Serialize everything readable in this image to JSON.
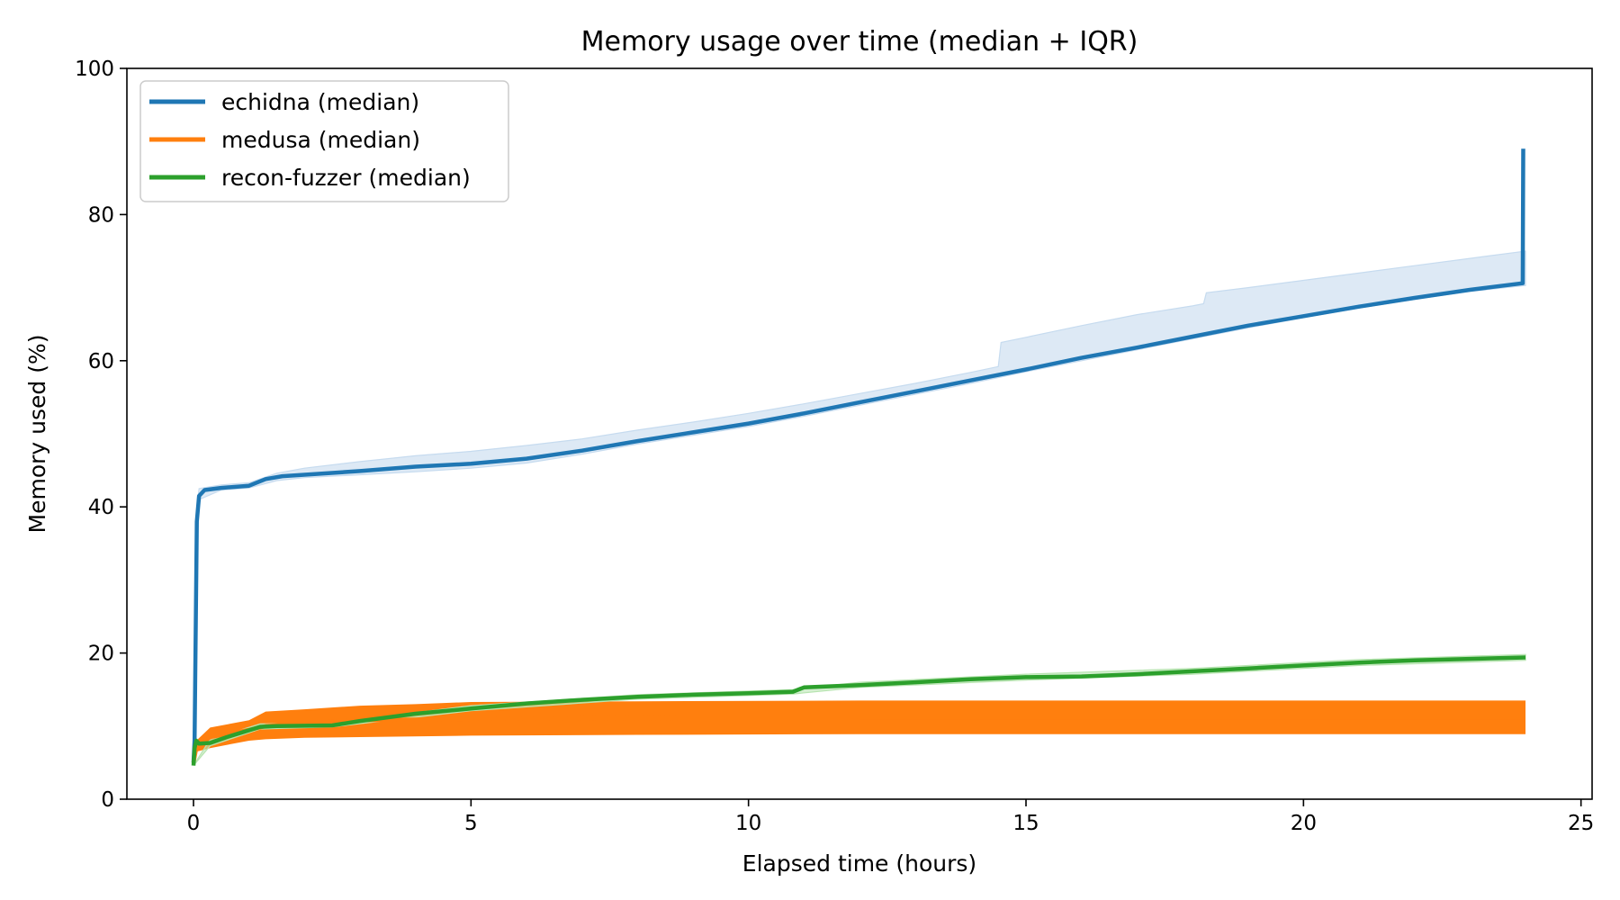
{
  "chart_data": {
    "type": "line",
    "title": "Memory usage over time (median + IQR)",
    "xlabel": "Elapsed time (hours)",
    "ylabel": "Memory used (%)",
    "xlim": [
      -1.2,
      25.2
    ],
    "ylim": [
      0,
      100
    ],
    "xticks": [
      0,
      5,
      10,
      15,
      20,
      25
    ],
    "yticks": [
      0,
      20,
      40,
      60,
      80,
      100
    ],
    "grid": false,
    "legend_position": "top-left",
    "series": [
      {
        "name": "echidna (median)",
        "color": "#1f77b4",
        "band_color": "#c6dbef",
        "median": [
          [
            0,
            5
          ],
          [
            0.02,
            8
          ],
          [
            0.06,
            38
          ],
          [
            0.1,
            41.5
          ],
          [
            0.2,
            42.3
          ],
          [
            0.5,
            42.6
          ],
          [
            1,
            42.9
          ],
          [
            1.3,
            43.8
          ],
          [
            1.6,
            44.2
          ],
          [
            2,
            44.4
          ],
          [
            3,
            44.9
          ],
          [
            4,
            45.5
          ],
          [
            5,
            45.9
          ],
          [
            6,
            46.6
          ],
          [
            7,
            47.7
          ],
          [
            8,
            49
          ],
          [
            9,
            50.2
          ],
          [
            10,
            51.4
          ],
          [
            11,
            52.8
          ],
          [
            12,
            54.3
          ],
          [
            13,
            55.8
          ],
          [
            14,
            57.3
          ],
          [
            15,
            58.8
          ],
          [
            16,
            60.4
          ],
          [
            17,
            61.8
          ],
          [
            18,
            63.3
          ],
          [
            19,
            64.8
          ],
          [
            20,
            66.1
          ],
          [
            21,
            67.4
          ],
          [
            22,
            68.6
          ],
          [
            23,
            69.7
          ],
          [
            23.95,
            70.6
          ],
          [
            23.96,
            89
          ]
        ],
        "iqr_low": [
          [
            0,
            5
          ],
          [
            0.06,
            37
          ],
          [
            0.1,
            41
          ],
          [
            0.5,
            42.3
          ],
          [
            1,
            42.6
          ],
          [
            1.5,
            43.6
          ],
          [
            2,
            44
          ],
          [
            3,
            44.4
          ],
          [
            4,
            44.8
          ],
          [
            5,
            45.3
          ],
          [
            6,
            46
          ],
          [
            7,
            47.2
          ],
          [
            8,
            48.6
          ],
          [
            9,
            49.8
          ],
          [
            10,
            51
          ],
          [
            11,
            52.4
          ],
          [
            12,
            53.9
          ],
          [
            13,
            55.4
          ],
          [
            14,
            56.9
          ],
          [
            15,
            58.5
          ],
          [
            16,
            60
          ],
          [
            17,
            61.5
          ],
          [
            18,
            63
          ],
          [
            19,
            64.5
          ],
          [
            20,
            65.9
          ],
          [
            21,
            67.2
          ],
          [
            22,
            68.4
          ],
          [
            23,
            69.5
          ],
          [
            24,
            70.3
          ]
        ],
        "iqr_high": [
          [
            0,
            5
          ],
          [
            0.06,
            40
          ],
          [
            0.1,
            42.5
          ],
          [
            0.5,
            43
          ],
          [
            1,
            43.3
          ],
          [
            1.5,
            44.6
          ],
          [
            2,
            45.3
          ],
          [
            3,
            46.2
          ],
          [
            4,
            47
          ],
          [
            5,
            47.6
          ],
          [
            6,
            48.4
          ],
          [
            7,
            49.3
          ],
          [
            8,
            50.5
          ],
          [
            9,
            51.6
          ],
          [
            10,
            52.8
          ],
          [
            11,
            54.1
          ],
          [
            12,
            55.5
          ],
          [
            13,
            56.9
          ],
          [
            14,
            58.4
          ],
          [
            14.5,
            59.2
          ],
          [
            14.55,
            62.5
          ],
          [
            15,
            63.2
          ],
          [
            16,
            64.8
          ],
          [
            17,
            66.3
          ],
          [
            18,
            67.5
          ],
          [
            18.2,
            67.8
          ],
          [
            18.25,
            69.3
          ],
          [
            19,
            70
          ],
          [
            20,
            71
          ],
          [
            21,
            72
          ],
          [
            22,
            73
          ],
          [
            23,
            74
          ],
          [
            24,
            75
          ]
        ]
      },
      {
        "name": "medusa (median)",
        "color": "#ff7f0e",
        "band_color": "#ffbb78",
        "median": [
          [
            0,
            5
          ],
          [
            0.05,
            7
          ],
          [
            0.3,
            8.5
          ],
          [
            1,
            9.5
          ],
          [
            1.3,
            10
          ],
          [
            2,
            10.4
          ],
          [
            3,
            10.8
          ],
          [
            5,
            11
          ],
          [
            8,
            11.1
          ],
          [
            12,
            11.2
          ],
          [
            16,
            11.2
          ],
          [
            20,
            11.2
          ],
          [
            24,
            11.2
          ]
        ],
        "iqr_low": [
          [
            0,
            5
          ],
          [
            0.05,
            6.5
          ],
          [
            0.3,
            7
          ],
          [
            1,
            8
          ],
          [
            1.3,
            8.2
          ],
          [
            2,
            8.4
          ],
          [
            3,
            8.5
          ],
          [
            5,
            8.7
          ],
          [
            8,
            8.8
          ],
          [
            12,
            8.9
          ],
          [
            16,
            8.9
          ],
          [
            20,
            8.9
          ],
          [
            24,
            8.9
          ]
        ],
        "iqr_high": [
          [
            0,
            5
          ],
          [
            0.05,
            8
          ],
          [
            0.3,
            9.8
          ],
          [
            1,
            10.8
          ],
          [
            1.3,
            12
          ],
          [
            2,
            12.3
          ],
          [
            3,
            12.8
          ],
          [
            4,
            13
          ],
          [
            5,
            13.3
          ],
          [
            8,
            13.4
          ],
          [
            12,
            13.5
          ],
          [
            16,
            13.5
          ],
          [
            20,
            13.5
          ],
          [
            24,
            13.5
          ]
        ]
      },
      {
        "name": "recon-fuzzer (median)",
        "color": "#2ca02c",
        "band_color": "#b7e4b0",
        "median": [
          [
            0,
            4.6
          ],
          [
            0.02,
            7
          ],
          [
            0.05,
            8
          ],
          [
            0.1,
            7.6
          ],
          [
            0.3,
            7.7
          ],
          [
            0.6,
            8.5
          ],
          [
            0.9,
            9.2
          ],
          [
            1.2,
            9.9
          ],
          [
            1.5,
            10
          ],
          [
            2.5,
            10.1
          ],
          [
            3,
            10.7
          ],
          [
            4,
            11.7
          ],
          [
            5,
            12.4
          ],
          [
            6,
            13.1
          ],
          [
            7,
            13.6
          ],
          [
            8,
            14
          ],
          [
            9,
            14.3
          ],
          [
            10,
            14.5
          ],
          [
            10.8,
            14.7
          ],
          [
            11,
            15.3
          ],
          [
            12,
            15.6
          ],
          [
            13,
            16
          ],
          [
            14,
            16.4
          ],
          [
            15,
            16.7
          ],
          [
            16,
            16.8
          ],
          [
            17,
            17.1
          ],
          [
            18,
            17.5
          ],
          [
            19,
            17.9
          ],
          [
            20,
            18.3
          ],
          [
            21,
            18.7
          ],
          [
            22,
            19
          ],
          [
            23,
            19.2
          ],
          [
            24,
            19.4
          ]
        ],
        "iqr_low": [
          [
            0,
            4.6
          ],
          [
            0.3,
            7.3
          ],
          [
            1.2,
            9.6
          ],
          [
            2.5,
            9.9
          ],
          [
            5,
            12.1
          ],
          [
            8,
            13.7
          ],
          [
            10.8,
            14.4
          ],
          [
            12,
            15.3
          ],
          [
            15,
            16.3
          ],
          [
            18,
            17.1
          ],
          [
            21,
            18.3
          ],
          [
            24,
            19
          ]
        ],
        "iqr_high": [
          [
            0,
            4.6
          ],
          [
            0.3,
            8.2
          ],
          [
            1.2,
            10.3
          ],
          [
            2.5,
            10.4
          ],
          [
            5,
            12.8
          ],
          [
            8,
            14.3
          ],
          [
            10.8,
            15
          ],
          [
            12,
            16
          ],
          [
            15,
            17.1
          ],
          [
            18,
            17.9
          ],
          [
            21,
            19.1
          ],
          [
            24,
            19.8
          ]
        ]
      }
    ]
  }
}
